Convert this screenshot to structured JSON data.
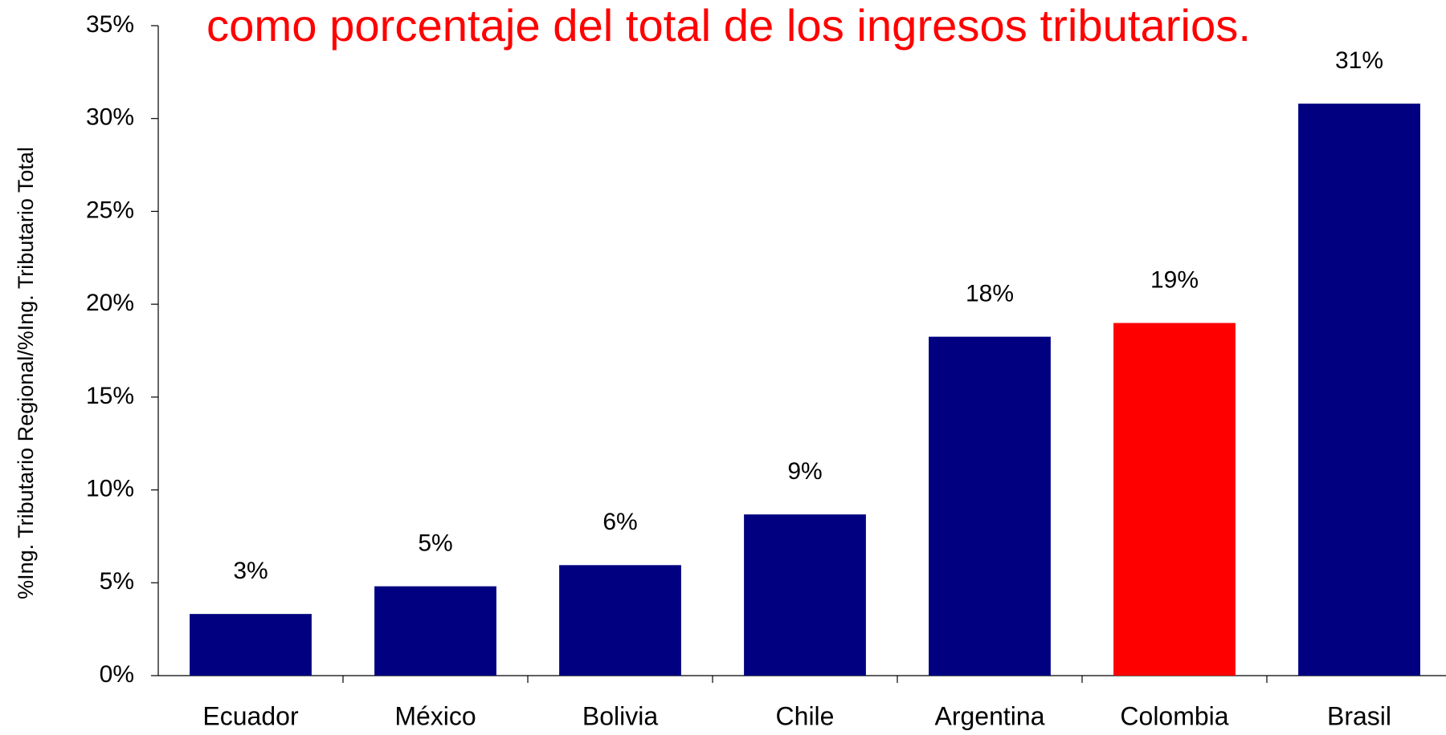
{
  "chart_data": {
    "type": "bar",
    "title": "como porcentaje del total de los ingresos tributarios.",
    "y_label": "%Ing. Tributario Regional/%Ing. Tributario Total",
    "categories": [
      "Ecuador",
      "México",
      "Bolivia",
      "Chile",
      "Argentina",
      "Colombia",
      "Brasil"
    ],
    "values": [
      3.32,
      4.81,
      5.95,
      8.68,
      18.25,
      18.99,
      30.8
    ],
    "value_labels": [
      "3%",
      "5%",
      "6%",
      "9%",
      "18%",
      "19%",
      "31%"
    ],
    "colors": [
      "#000080",
      "#000080",
      "#000080",
      "#000080",
      "#000080",
      "#ff0000",
      "#000080"
    ],
    "ylim": [
      0,
      35
    ],
    "yticks": [
      {
        "value": 0,
        "label": "0%"
      },
      {
        "value": 5,
        "label": "5%"
      },
      {
        "value": 10,
        "label": "10%"
      },
      {
        "value": 15,
        "label": "15%"
      },
      {
        "value": 20,
        "label": "20%"
      },
      {
        "value": 25,
        "label": "25%"
      },
      {
        "value": 30,
        "label": "30%"
      },
      {
        "value": 35,
        "label": "35%"
      }
    ],
    "grid": false
  }
}
